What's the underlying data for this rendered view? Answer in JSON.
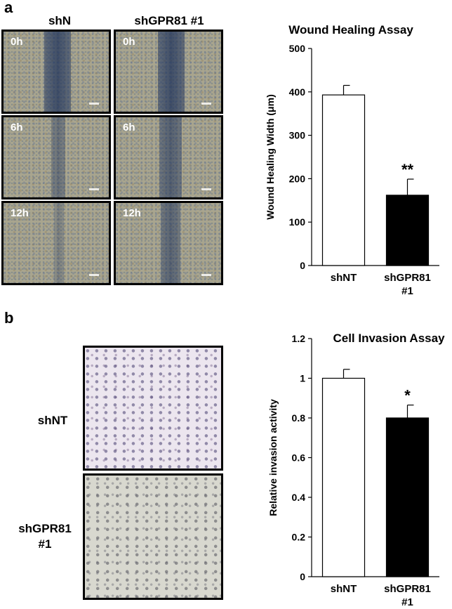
{
  "panels": {
    "a": {
      "letter": "a",
      "columns": [
        "shN",
        "shGPR81 #1"
      ],
      "timepoints": [
        "0h",
        "6h",
        "12h"
      ]
    },
    "b": {
      "letter": "b",
      "rows": [
        [
          "shNT"
        ],
        [
          "shGPR81",
          "#1"
        ]
      ]
    }
  },
  "chart_data": [
    {
      "type": "bar",
      "title": "Wound Healing Assay",
      "ylabel": "Wound Healing Width (μm)",
      "categories": [
        [
          "shNT"
        ],
        [
          "shGPR81",
          "#1"
        ]
      ],
      "values": [
        393,
        162
      ],
      "errors": [
        22,
        37
      ],
      "colors": [
        "#ffffff",
        "#000000"
      ],
      "significance": [
        "",
        "**"
      ],
      "ylim": [
        0,
        500
      ],
      "yticks": [
        "0",
        "100",
        "200",
        "300",
        "400",
        "500"
      ]
    },
    {
      "type": "bar",
      "title": "Cell Invasion Assay",
      "ylabel": "Relative invasion activity",
      "categories": [
        [
          "shNT"
        ],
        [
          "shGPR81",
          "#1"
        ]
      ],
      "values": [
        1.0,
        0.8
      ],
      "errors": [
        0.045,
        0.065
      ],
      "colors": [
        "#ffffff",
        "#000000"
      ],
      "significance": [
        "",
        "*"
      ],
      "ylim": [
        0,
        1.2
      ],
      "yticks": [
        "0",
        "0.2",
        "0.4",
        "0.6",
        "0.8",
        "1",
        "1.2"
      ]
    }
  ]
}
